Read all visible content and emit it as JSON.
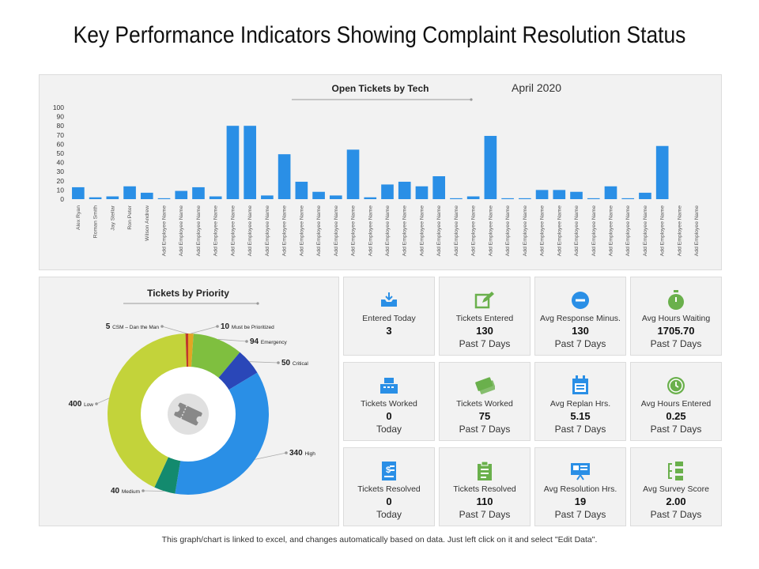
{
  "page": {
    "title": "Key Performance Indicators Showing Complaint Resolution Status",
    "footer": "This graph/chart is linked to excel, and changes automatically based on data. Just left click on it and select \"Edit Data\"."
  },
  "colors": {
    "bar": "#2a8fe6",
    "panel": "#f2f2f2",
    "icon_blue": "#2a8fe6",
    "icon_green": "#6ab04c"
  },
  "chart_data": [
    {
      "type": "bar",
      "title": "Open Tickets by Tech",
      "subtitle": "April 2020",
      "ylim": [
        0,
        100
      ],
      "yticks": [
        0,
        10,
        20,
        30,
        40,
        50,
        60,
        70,
        80,
        90,
        100
      ],
      "categories": [
        "Alex Ryan",
        "Roman Smith",
        "Jay Stellar",
        "Ron Peter",
        "Wilson Andrew",
        "Add Employee Name",
        "Add Employee Name",
        "Add Employee Name",
        "Add Employee Name",
        "Add Employee Name",
        "Add Employee Name",
        "Add Employee Name",
        "Add Employee Name",
        "Add Employee Name",
        "Add Employee Name",
        "Add Employee Name",
        "Add Employee Name",
        "Add Employee Name",
        "Add Employee Name",
        "Add Employee Name",
        "Add Employee Name",
        "Add Employee Name",
        "Add Employee Name",
        "Add Employee Name",
        "Add Employee Name",
        "Add Employee Name",
        "Add Employee Name",
        "Add Employee Name",
        "Add Employee Name",
        "Add Employee Name",
        "Add Employee Name",
        "Add Employee Name",
        "Add Employee Name",
        "Add Employee Name",
        "Add Employee Name",
        "Add Employee Name",
        "Add Employee Name"
      ],
      "values": [
        13,
        2,
        3,
        14,
        7,
        1,
        9,
        13,
        3,
        80,
        80,
        4,
        49,
        19,
        8,
        4,
        54,
        2,
        16,
        19,
        14,
        25,
        1,
        3,
        69,
        1,
        1,
        10,
        10,
        8,
        1,
        14,
        1,
        7,
        58,
        0,
        0
      ]
    },
    {
      "type": "pie",
      "title": "Tickets by Priority",
      "slices": [
        {
          "value": 10,
          "unit": "Must be Prioritized",
          "color": "#e3a623"
        },
        {
          "value": 94,
          "unit": "Emergency",
          "color": "#7fbf3f"
        },
        {
          "value": 50,
          "unit": "Critical",
          "color": "#2a47b8"
        },
        {
          "value": 340,
          "unit": "High",
          "color": "#2a8fe6"
        },
        {
          "value": 40,
          "unit": "Medium",
          "color": "#138a6e"
        },
        {
          "value": 400,
          "unit": "Low",
          "color": "#c3d33a"
        },
        {
          "value": 5,
          "unit": "CSM – Dan the Man",
          "color": "#c0392b"
        }
      ]
    }
  ],
  "kpis": [
    {
      "icon": "inbox-tray-icon",
      "label": "Entered Today",
      "value": "3",
      "sub": ""
    },
    {
      "icon": "edit-pencil-icon",
      "label": "Tickets Entered",
      "value": "130",
      "sub": "Past 7 Days"
    },
    {
      "icon": "minus-circle-icon",
      "label": "Avg Response Minus.",
      "value": "130",
      "sub": "Past 7 Days"
    },
    {
      "icon": "stopwatch-icon",
      "label": "Avg Hours Waiting",
      "value": "1705.70",
      "sub": "Past 7 Days"
    },
    {
      "icon": "cash-register-icon",
      "label": "Tickets Worked",
      "value": "0",
      "sub": "Today"
    },
    {
      "icon": "tickets-icon",
      "label": "Tickets Worked",
      "value": "75",
      "sub": "Past 7 Days"
    },
    {
      "icon": "calendar-icon",
      "label": "Avg Replan Hrs.",
      "value": "5.15",
      "sub": "Past 7 Days"
    },
    {
      "icon": "clock-icon",
      "label": "Avg Hours Entered",
      "value": "0.25",
      "sub": "Past 7 Days"
    },
    {
      "icon": "receipt-dollar-icon",
      "label": "Tickets Resolved",
      "value": "0",
      "sub": "Today"
    },
    {
      "icon": "clipboard-icon",
      "label": "Tickets Resolved",
      "value": "110",
      "sub": "Past 7 Days"
    },
    {
      "icon": "presentation-board-icon",
      "label": "Avg Resolution Hrs.",
      "value": "19",
      "sub": "Past 7 Days"
    },
    {
      "icon": "flow-diagram-icon",
      "label": "Avg Survey Score",
      "value": "2.00",
      "sub": "Past 7 Days"
    }
  ]
}
